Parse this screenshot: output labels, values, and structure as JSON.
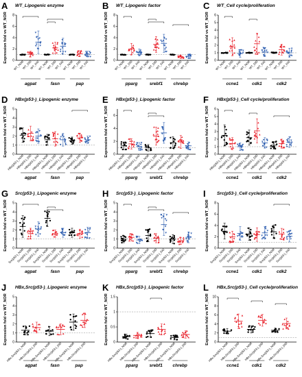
{
  "colors": {
    "nor": "#000000",
    "did": "#e8202a",
    "fat": "#2f5fb0",
    "dashed": "#888888"
  },
  "panels": [
    {
      "letter": "A",
      "title": "WT_Lipogenic enzyme",
      "ylabel": "Expression fold vs WT_NOR",
      "ymax": 8,
      "genes": [
        "agpat",
        "fasn",
        "pap"
      ],
      "groups": [
        [
          "WT_NOR",
          "WT_DID",
          "WT_FAT"
        ],
        [
          "WT_NOR",
          "WT_DID",
          "WT_FAT"
        ],
        [
          "WT_NOR",
          "WT_DID",
          "WT_FAT"
        ]
      ],
      "means": [
        [
          1,
          1.1,
          3.2
        ],
        [
          1,
          2.2,
          2.5
        ],
        [
          1,
          1.2,
          1.1
        ]
      ],
      "spread": [
        [
          0.05,
          0.5,
          2.0
        ],
        [
          0.05,
          1.0,
          1.4
        ],
        [
          0.05,
          0.5,
          0.5
        ]
      ],
      "sig": [
        [
          0,
          2
        ],
        [
          3,
          5
        ],
        [
          3,
          4
        ]
      ]
    },
    {
      "letter": "B",
      "title": "WT_Lipogenic factor",
      "ylabel": "Expression fold vs WT_NOR",
      "ymax": 8,
      "genes": [
        "pparg",
        "srebf1",
        "chrebp"
      ],
      "groups": [
        [
          "WT_NOR",
          "WT_DID",
          "WT_FAT"
        ],
        [
          "WT_NOR",
          "WT_DID",
          "WT_FAT"
        ],
        [
          "WT_NOR",
          "WT_DID",
          "WT_FAT"
        ]
      ],
      "means": [
        [
          1,
          2.0,
          1.4
        ],
        [
          1,
          2.8,
          3.0
        ],
        [
          1,
          0.6,
          0.7
        ]
      ],
      "spread": [
        [
          0.05,
          1.0,
          0.6
        ],
        [
          0.05,
          1.4,
          1.6
        ],
        [
          0.05,
          0.3,
          0.4
        ]
      ],
      "sig": [
        [
          0,
          1
        ],
        [
          3,
          4
        ],
        [
          3,
          5
        ],
        [
          6,
          8
        ]
      ]
    },
    {
      "letter": "C",
      "title": "WT_Cell cycle/proliferation",
      "ylabel": "Expression fold vs WT_NOR",
      "ymax": 6,
      "genes": [
        "ccne1",
        "cdk1",
        "cdk2"
      ],
      "groups": [
        [
          "WT_NOR",
          "WT_DID",
          "WT_FAT"
        ],
        [
          "WT_NOR",
          "WT_DID",
          "WT_FAT"
        ],
        [
          "WT_NOR",
          "WT_DID",
          "WT_FAT"
        ]
      ],
      "means": [
        [
          1,
          1.8,
          0.9
        ],
        [
          1,
          2.2,
          1.1
        ],
        [
          1,
          1.4,
          1.0
        ]
      ],
      "spread": [
        [
          0.05,
          1.2,
          0.5
        ],
        [
          0.05,
          1.4,
          0.6
        ],
        [
          0.05,
          0.7,
          0.6
        ]
      ],
      "sig": [
        [
          0,
          1
        ],
        [
          3,
          4
        ]
      ]
    },
    {
      "letter": "D",
      "title": "HBx(p53-)_Lipogenic enzyme",
      "ylabel": "Expression fold vs WT_NOR",
      "ymax": 5,
      "genes": [
        "agpat",
        "fasn",
        "pap"
      ],
      "groups": [
        [
          "HBx(p53-)_NOR",
          "HBx(p53-)_DID",
          "HBx(p53-)_FAT"
        ],
        [
          "HBx(p53-)_NOR",
          "HBx(p53-)_DID",
          "HBx(p53-)_FAT"
        ],
        [
          "HBx(p53-)_NOR",
          "HBx(p53-)_DID",
          "HBx(p53-)_FAT"
        ]
      ],
      "means": [
        [
          2.1,
          2.3,
          2.0
        ],
        [
          1.6,
          1.7,
          1.6
        ],
        [
          1.5,
          1.8,
          1.6
        ]
      ],
      "spread": [
        [
          0.8,
          0.8,
          0.8
        ],
        [
          0.6,
          0.8,
          0.7
        ],
        [
          0.4,
          0.5,
          0.4
        ]
      ],
      "sig": [
        [
          6,
          8
        ]
      ]
    },
    {
      "letter": "E",
      "title": "HBx(p53-)_Lipogenic factor",
      "ylabel": "Expression fold vs WT_NOR",
      "ymax": 7,
      "genes": [
        "pparg",
        "srebf1",
        "chrebp"
      ],
      "groups": [
        [
          "HBx(p53-)_NOR",
          "HBx(p53-)_DID",
          "HBx(p53-)_FAT"
        ],
        [
          "HBx(p53-)_NOR",
          "HBx(p53-)_DID",
          "HBx(p53-)_FAT"
        ],
        [
          "HBx(p53-)_NOR",
          "HBx(p53-)_DID",
          "HBx(p53-)_FAT"
        ]
      ],
      "means": [
        [
          1.3,
          1.6,
          1.2
        ],
        [
          1.0,
          2.8,
          3.3
        ],
        [
          1.8,
          1.9,
          1.3
        ]
      ],
      "spread": [
        [
          0.6,
          0.8,
          0.6
        ],
        [
          0.5,
          1.4,
          1.6
        ],
        [
          0.9,
          1.0,
          0.6
        ]
      ],
      "sig": [
        [
          0,
          1
        ],
        [
          3,
          4
        ],
        [
          3,
          5
        ]
      ]
    },
    {
      "letter": "F",
      "title": "HBx(p53-)_Cell cycle/proliferation",
      "ylabel": "Expression fold vs WT_NOR",
      "ymax": 6,
      "genes": [
        "ccne1",
        "cdk1",
        "cdk2"
      ],
      "groups": [
        [
          "HBx(p53-)_NOR",
          "HBx(p53-)_DID",
          "HBx(p53-)_FAT"
        ],
        [
          "HBx(p53-)_NOR",
          "HBx(p53-)_DID",
          "HBx(p53-)_FAT"
        ],
        [
          "HBx(p53-)_NOR",
          "HBx(p53-)_DID",
          "HBx(p53-)_FAT"
        ]
      ],
      "means": [
        [
          2.5,
          1.4,
          1.0
        ],
        [
          2.2,
          3.1,
          1.5
        ],
        [
          1.2,
          1.4,
          1.6
        ]
      ],
      "spread": [
        [
          1.4,
          0.8,
          0.5
        ],
        [
          1.0,
          1.6,
          0.7
        ],
        [
          0.5,
          0.6,
          0.7
        ]
      ],
      "sig": [
        [
          0,
          1
        ],
        [
          3,
          4
        ],
        [
          6,
          8
        ]
      ]
    },
    {
      "letter": "G",
      "title": "Src(p53-)_Lipogenic enzyme",
      "ylabel": "Expression fold vs WT_NOR",
      "ymax": 5,
      "genes": [
        "agpat",
        "fasn",
        "pap"
      ],
      "groups": [
        [
          "Src(p53-)_NOR",
          "Src(p53-)_DID",
          "Src(p53-)_FAT"
        ],
        [
          "Src(p53-)_NOR",
          "Src(p53-)_DID",
          "Src(p53-)_FAT"
        ],
        [
          "Src(p53-)_NOR",
          "Src(p53-)_DID",
          "Src(p53-)_FAT"
        ]
      ],
      "means": [
        [
          2.4,
          1.6,
          2.1
        ],
        [
          3.3,
          1.6,
          1.7
        ],
        [
          1.7,
          1.6,
          1.7
        ]
      ],
      "spread": [
        [
          1.2,
          0.6,
          0.8
        ],
        [
          0.9,
          0.4,
          0.5
        ],
        [
          0.5,
          0.5,
          0.6
        ]
      ],
      "sig": [
        [
          0,
          2
        ],
        [
          3,
          4
        ],
        [
          3,
          5
        ]
      ]
    },
    {
      "letter": "H",
      "title": "Src(p53-)_Lipogenic factor",
      "ylabel": "Expression fold vs WT_NOR",
      "ymax": 5,
      "genes": [
        "pparg",
        "srebf1",
        "chrebp"
      ],
      "groups": [
        [
          "Src(p53-)_NOR",
          "Src(p53-)_DID",
          "Src(p53-)_FAT"
        ],
        [
          "Src(p53-)_NOR",
          "Src(p53-)_DID",
          "Src(p53-)_FAT"
        ],
        [
          "Src(p53-)_NOR",
          "Src(p53-)_DID",
          "Src(p53-)_FAT"
        ]
      ],
      "means": [
        [
          1.0,
          1.2,
          0.9
        ],
        [
          1.4,
          1.1,
          2.6
        ],
        [
          1.0,
          0.8,
          1.2
        ]
      ],
      "spread": [
        [
          0.4,
          0.4,
          0.4
        ],
        [
          0.7,
          0.5,
          1.2
        ],
        [
          0.5,
          0.4,
          0.6
        ]
      ],
      "sig": [
        [
          0,
          1
        ],
        [
          3,
          4
        ],
        [
          3,
          5
        ],
        [
          6,
          8
        ]
      ]
    },
    {
      "letter": "I",
      "title": "Src(p53-)_Cell cycle/proliferation",
      "ylabel": "Expression fold vs WT_NOR",
      "ymax": 8,
      "genes": [
        "ccne1",
        "cdk1",
        "cdk2"
      ],
      "groups": [
        [
          "Src(p53-)_NOR",
          "Src(p53-)_DID",
          "Src(p53-)_FAT"
        ],
        [
          "Src(p53-)_NOR",
          "Src(p53-)_DID",
          "Src(p53-)_FAT"
        ],
        [
          "Src(p53-)_NOR",
          "Src(p53-)_DID",
          "Src(p53-)_FAT"
        ]
      ],
      "means": [
        [
          3.0,
          2.0,
          2.6
        ],
        [
          2.5,
          2.4,
          2.7
        ],
        [
          2.9,
          2.5,
          2.1
        ]
      ],
      "spread": [
        [
          1.4,
          1.0,
          1.2
        ],
        [
          1.1,
          1.2,
          1.1
        ],
        [
          1.2,
          1.0,
          1.0
        ]
      ],
      "sig": [
        [
          6,
          8
        ]
      ]
    },
    {
      "letter": "J",
      "title": "HBx,Src(p53-)_Lipogenic enzyme",
      "ylabel": "Expression fold vs WT_NOR",
      "ymax": 5,
      "genes": [
        "agpat",
        "fasn",
        "pap"
      ],
      "groups": [
        [
          "HBx,Src(p53-)_NOR",
          "HBx,Src(p53-)_DID"
        ],
        [
          "HBx,Src(p53-)_NOR",
          "HBx,Src(p53-)_DID"
        ],
        [
          "HBx,Src(p53-)_NOR",
          "HBx,Src(p53-)_DID"
        ]
      ],
      "means": [
        [
          1.3,
          1.6
        ],
        [
          1.2,
          1.4
        ],
        [
          2.2,
          2.4
        ]
      ],
      "spread": [
        [
          0.5,
          0.6
        ],
        [
          0.5,
          0.6
        ],
        [
          0.9,
          0.8
        ]
      ],
      "sig": []
    },
    {
      "letter": "K",
      "title": "HBx,Src(p53-)_Lipogenic factor",
      "ylabel": "Expression fold vs WT_NOR",
      "ymax": 1.5,
      "genes": [
        "pparg",
        "srebf1",
        "chrebp"
      ],
      "groups": [
        [
          "HBx,Src(p53-)_NOR",
          "HBx,Src(p53-)_DID"
        ],
        [
          "HBx,Src(p53-)_NOR",
          "HBx,Src(p53-)_DID"
        ],
        [
          "HBx,Src(p53-)_NOR",
          "HBx,Src(p53-)_DID"
        ]
      ],
      "means": [
        [
          0.18,
          0.22
        ],
        [
          0.28,
          0.42
        ],
        [
          0.15,
          0.25
        ]
      ],
      "spread": [
        [
          0.08,
          0.1
        ],
        [
          0.12,
          0.18
        ],
        [
          0.08,
          0.12
        ]
      ],
      "sig": [
        [
          2,
          3
        ]
      ]
    },
    {
      "letter": "L",
      "title": "HBx,Src(p53-)_Cell cycle/proliferation",
      "ylabel": "Expression fold vs WT_NOR",
      "ymax": 10,
      "genes": [
        "ccne1",
        "cdk1",
        "cdk2"
      ],
      "groups": [
        [
          "HBx,Src(p53-)_NOR",
          "HBx,Src(p53-)_DID"
        ],
        [
          "HBx,Src(p53-)_NOR",
          "HBx,Src(p53-)_DID"
        ],
        [
          "HBx,Src(p53-)_NOR",
          "HBx,Src(p53-)_DID"
        ]
      ],
      "means": [
        [
          2.4,
          4.6
        ],
        [
          2.8,
          4.8
        ],
        [
          2.6,
          4.1
        ]
      ],
      "spread": [
        [
          0.6,
          1.6
        ],
        [
          0.8,
          1.3
        ],
        [
          0.5,
          1.2
        ]
      ],
      "sig": [
        [
          0,
          1
        ],
        [
          2,
          3
        ],
        [
          4,
          5
        ]
      ]
    }
  ]
}
